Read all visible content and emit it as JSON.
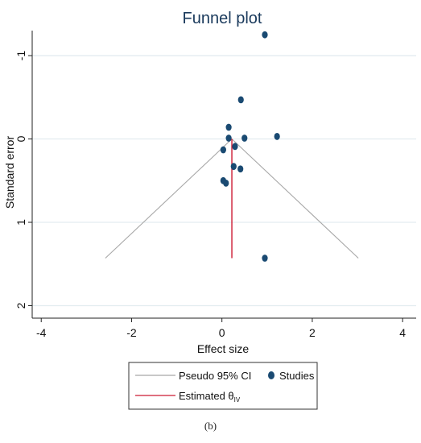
{
  "chart_data": {
    "type": "scatter",
    "title": "Funnel plot",
    "xlabel": "Effect size",
    "ylabel": "Standard error",
    "xlim": [
      -4.2,
      4.3
    ],
    "ylim": [
      -1.3,
      2.15
    ],
    "y_axis_reversed": true,
    "grid": "horizontal",
    "x_ticks": [
      -4,
      -2,
      0,
      2,
      4
    ],
    "x_tick_labels": [
      "-4",
      "-2",
      "0",
      "2",
      "4"
    ],
    "y_ticks": [
      -1,
      0,
      1,
      2
    ],
    "y_tick_labels": [
      "-1",
      "0",
      "1",
      "2"
    ],
    "legend_position": "bottom",
    "series": [
      {
        "name": "Studies",
        "color": "#1a4a72",
        "points": [
          {
            "x": 0.95,
            "y": -1.25
          },
          {
            "x": 0.42,
            "y": -0.47
          },
          {
            "x": 0.15,
            "y": -0.14
          },
          {
            "x": 1.22,
            "y": -0.03
          },
          {
            "x": 0.5,
            "y": -0.01
          },
          {
            "x": 0.15,
            "y": -0.01
          },
          {
            "x": 0.29,
            "y": 0.09
          },
          {
            "x": 0.03,
            "y": 0.13
          },
          {
            "x": 0.26,
            "y": 0.33
          },
          {
            "x": 0.41,
            "y": 0.36
          },
          {
            "x": 0.03,
            "y": 0.5
          },
          {
            "x": 0.09,
            "y": 0.53
          },
          {
            "x": 0.95,
            "y": 1.43
          }
        ]
      },
      {
        "name": "Pseudo 95% CI",
        "color": "#a8a8a8",
        "points": [
          {
            "x": -2.58,
            "y": 1.43
          },
          {
            "x": 0.22,
            "y": 0.0
          },
          {
            "x": 3.02,
            "y": 1.43
          }
        ]
      },
      {
        "name": "Estimated θIV",
        "color": "#cc1a33",
        "points": [
          {
            "x": 0.22,
            "y": 0.0
          },
          {
            "x": 0.22,
            "y": 1.43
          }
        ]
      }
    ]
  },
  "legend": {
    "ci_label": "Pseudo 95% CI",
    "studies_label": "Studies",
    "estimate_label": "Estimated θ",
    "estimate_subscript": "IV"
  },
  "caption": "(b)"
}
